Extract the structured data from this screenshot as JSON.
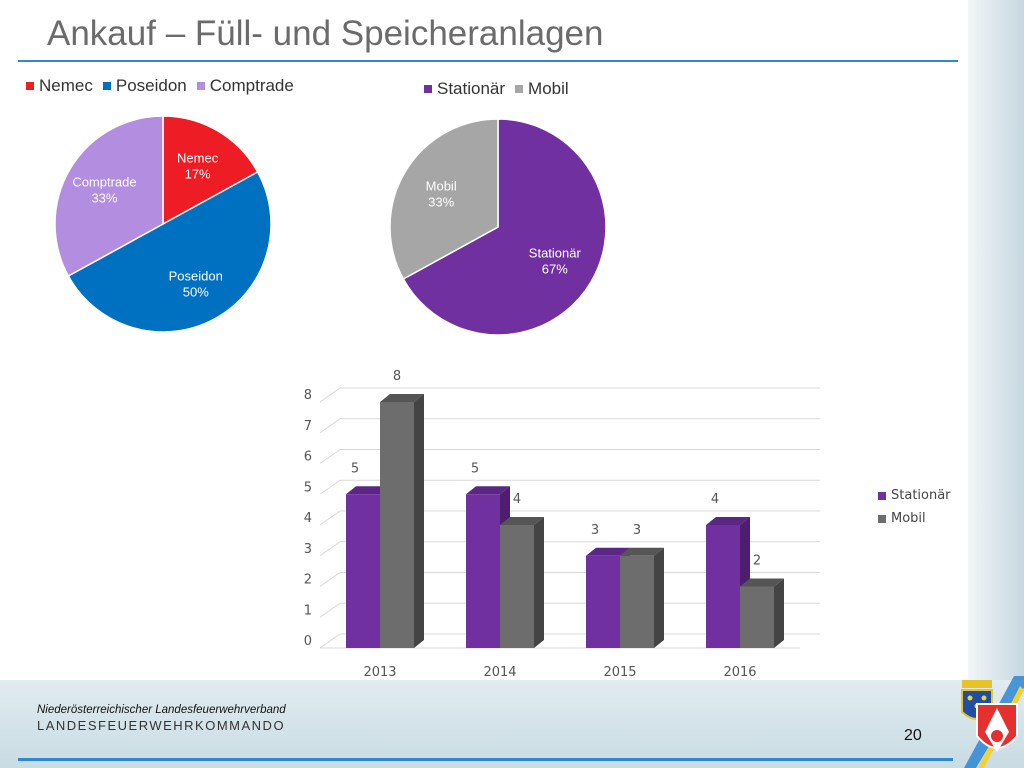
{
  "slide": {
    "title": "Ankauf – Füll- und Speicheranlagen",
    "footer_org": "Niederösterreichischer Landesfeuerwehrverband",
    "footer_sub": "LANDESFEUERWEHRKOMMANDO",
    "page_number": "20"
  },
  "colors": {
    "nemec": "#ee1c25",
    "poseidon": "#0070c0",
    "comptrade": "#b38ddf",
    "stationaer": "#7030a0",
    "mobil": "#a6a6a6",
    "mobil_bar": "#6d6d6d",
    "accent": "#2e86d4"
  },
  "icons": {
    "crest": "lower-austria-crest-icon",
    "emblem": "fire-brigade-emblem-icon"
  },
  "chart_data": [
    {
      "type": "pie",
      "legend_position": "top",
      "slices": [
        {
          "label": "Nemec",
          "value": 17,
          "color": "#ee1c25"
        },
        {
          "label": "Poseidon",
          "value": 50,
          "color": "#0070c0"
        },
        {
          "label": "Comptrade",
          "value": 33,
          "color": "#b38ddf"
        }
      ]
    },
    {
      "type": "pie",
      "legend_position": "top",
      "slices": [
        {
          "label": "Stationär",
          "value": 67,
          "color": "#7030a0"
        },
        {
          "label": "Mobil",
          "value": 33,
          "color": "#a6a6a6"
        }
      ]
    },
    {
      "type": "bar",
      "style": "3d-clustered",
      "categories": [
        "2013",
        "2014",
        "2015",
        "2016"
      ],
      "series": [
        {
          "name": "Stationär",
          "values": [
            5,
            5,
            3,
            4
          ],
          "color": "#7030a0"
        },
        {
          "name": "Mobil",
          "values": [
            8,
            4,
            3,
            2
          ],
          "color": "#6d6d6d"
        }
      ],
      "ylim": [
        0,
        8
      ],
      "yticks": [
        0,
        1,
        2,
        3,
        4,
        5,
        6,
        7,
        8
      ],
      "grid": true,
      "legend_position": "right"
    }
  ]
}
